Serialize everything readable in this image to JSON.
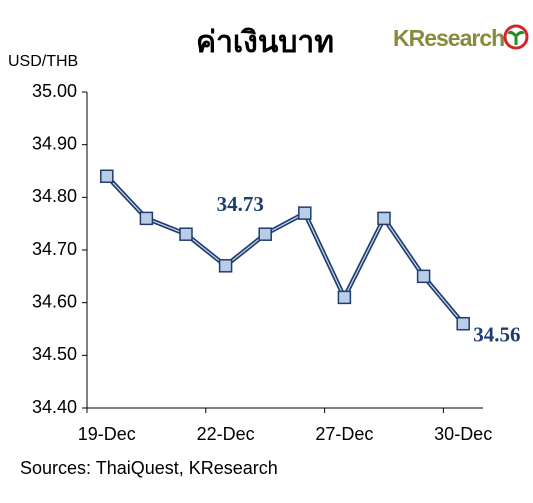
{
  "chart_data": {
    "type": "line",
    "title": "ค่าเงินบาท",
    "logo": "KResearch",
    "y_label": "USD/THB",
    "source": "Sources: ThaiQuest, KResearch",
    "categories": [
      "19-Dec",
      null,
      null,
      "22-Dec",
      null,
      null,
      "27-Dec",
      null,
      null,
      "30-Dec"
    ],
    "series": [
      {
        "name": "USD/THB",
        "color": "#1f3d6e",
        "values": [
          34.84,
          34.76,
          34.73,
          34.67,
          34.73,
          34.77,
          34.61,
          34.76,
          34.65,
          34.56
        ],
        "value_labels": [
          null,
          null,
          null,
          null,
          "34.73",
          null,
          null,
          null,
          null,
          "34.56"
        ]
      }
    ],
    "ylim": [
      34.4,
      35.0
    ],
    "yticks": [
      {
        "value": 34.4,
        "label": "34.40"
      },
      {
        "value": 34.5,
        "label": "34.50"
      },
      {
        "value": 34.6,
        "label": "34.60"
      },
      {
        "value": 34.7,
        "label": "34.70"
      },
      {
        "value": 34.8,
        "label": "34.80"
      },
      {
        "value": 34.9,
        "label": "34.90"
      },
      {
        "value": 35.0,
        "label": "35.00"
      }
    ],
    "grid": false
  }
}
